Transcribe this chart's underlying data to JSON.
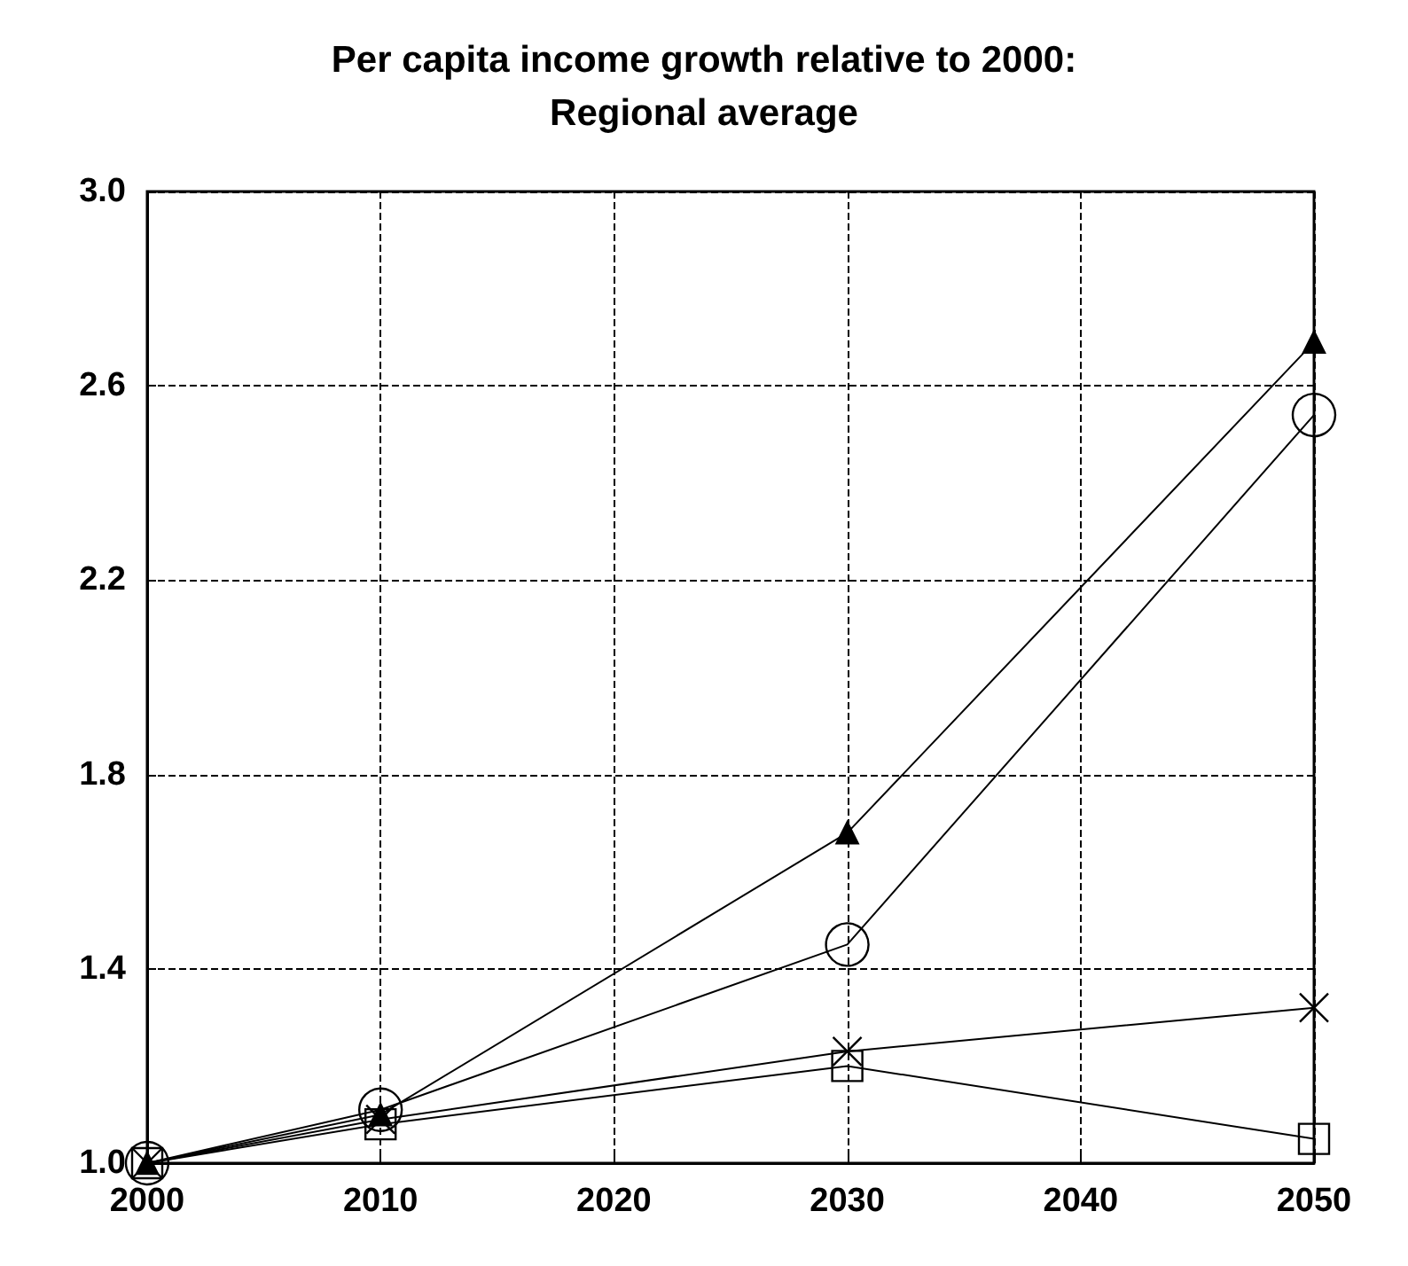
{
  "chart_data": {
    "type": "line",
    "title": "Per capita income growth relative to 2000:\nRegional average",
    "x": [
      2000,
      2010,
      2030,
      2050
    ],
    "series": [
      {
        "color": "#000000",
        "marker": "circle",
        "values": [
          1.0,
          1.11,
          1.45,
          2.54
        ]
      },
      {
        "color": "#000000",
        "marker": "triangle",
        "values": [
          1.0,
          1.1,
          1.68,
          2.69
        ]
      },
      {
        "color": "#000000",
        "marker": "cross",
        "values": [
          1.0,
          1.09,
          1.23,
          1.32
        ]
      },
      {
        "color": "#000000",
        "marker": "square",
        "values": [
          1.0,
          1.08,
          1.2,
          1.05
        ]
      }
    ],
    "xlim": [
      2000,
      2050
    ],
    "xticks": [
      2000,
      2010,
      2020,
      2030,
      2040,
      2050
    ],
    "ylim": [
      1.0,
      3.0
    ],
    "yticks": [
      {
        "value": 1.0,
        "label": "1.0"
      },
      {
        "value": 1.4,
        "label": "1.4"
      },
      {
        "value": 1.8,
        "label": "1.8"
      },
      {
        "value": 2.2,
        "label": "2.2"
      },
      {
        "value": 2.6,
        "label": "2.6"
      },
      {
        "value": 3.0,
        "label": "3.0"
      }
    ],
    "grid": true,
    "line_style": "solid"
  }
}
